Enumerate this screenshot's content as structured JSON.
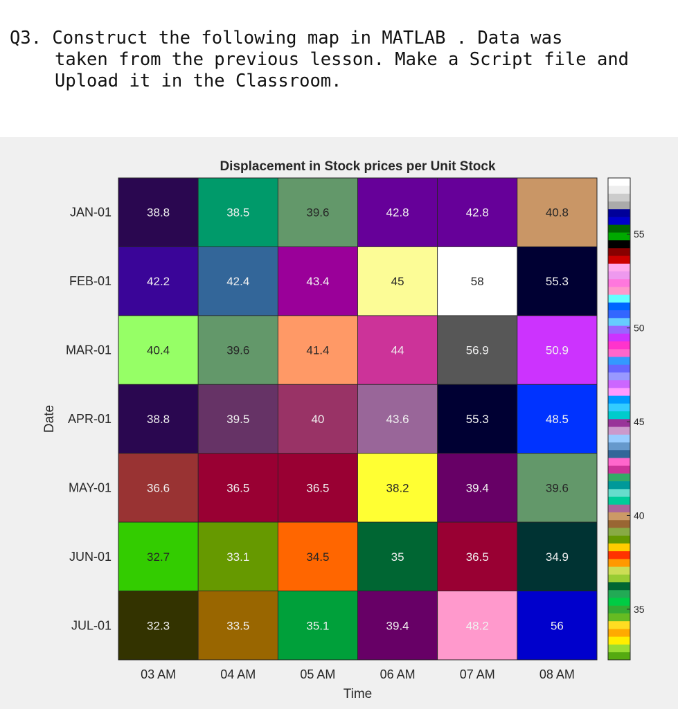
{
  "question": {
    "line1": "Q3. Construct the following map in MATLAB . Data was",
    "line2": "taken from the previous lesson. Make a Script file and",
    "line3": "Upload it in the Classroom."
  },
  "chart_data": {
    "type": "heatmap",
    "title": "Displacement in Stock prices per Unit Stock",
    "xlabel": "Time",
    "ylabel": "Date",
    "x_categories": [
      "03 AM",
      "04 AM",
      "05 AM",
      "06 AM",
      "07 AM",
      "08 AM"
    ],
    "y_categories": [
      "JAN-01",
      "FEB-01",
      "MAR-01",
      "APR-01",
      "MAY-01",
      "JUN-01",
      "JUL-01"
    ],
    "values": [
      [
        38.8,
        38.5,
        39.6,
        42.8,
        42.8,
        40.8
      ],
      [
        42.2,
        42.4,
        43.4,
        45,
        58,
        55.3
      ],
      [
        40.4,
        39.6,
        41.4,
        44,
        56.9,
        50.9
      ],
      [
        38.8,
        39.5,
        40,
        43.6,
        55.3,
        48.5
      ],
      [
        36.6,
        36.5,
        36.5,
        38.2,
        39.4,
        39.6
      ],
      [
        32.7,
        33.1,
        34.5,
        35,
        36.5,
        34.9
      ],
      [
        32.3,
        33.5,
        35.1,
        39.4,
        48.2,
        56
      ]
    ],
    "cell_colors": [
      [
        "#2a0750",
        "#009a6a",
        "#63986a",
        "#660099",
        "#660099",
        "#c99666"
      ],
      [
        "#3a0598",
        "#336699",
        "#9a0099",
        "#fcfc96",
        "#ffffff",
        "#000033"
      ],
      [
        "#96ff66",
        "#63986a",
        "#ff9966",
        "#cc3399",
        "#575757",
        "#cc33fe"
      ],
      [
        "#2a0750",
        "#663366",
        "#993366",
        "#996699",
        "#000033",
        "#0033ff"
      ],
      [
        "#993333",
        "#990033",
        "#990033",
        "#ffff33",
        "#670066",
        "#63986a"
      ],
      [
        "#33cc00",
        "#669900",
        "#ff6600",
        "#006633",
        "#990033",
        "#003333"
      ],
      [
        "#333300",
        "#996600",
        "#00a03a",
        "#670066",
        "#ff99cc",
        "#0000cc"
      ]
    ],
    "label_colors": [
      [
        "#f0f0f0",
        "#f0f0f0",
        "#262626",
        "#f0f0f0",
        "#f0f0f0",
        "#262626"
      ],
      [
        "#f0f0f0",
        "#f0f0f0",
        "#f0f0f0",
        "#262626",
        "#262626",
        "#f0f0f0"
      ],
      [
        "#262626",
        "#262626",
        "#262626",
        "#f0f0f0",
        "#f0f0f0",
        "#f0f0f0"
      ],
      [
        "#f0f0f0",
        "#f0f0f0",
        "#f0f0f0",
        "#f0f0f0",
        "#f0f0f0",
        "#f0f0f0"
      ],
      [
        "#f0f0f0",
        "#f0f0f0",
        "#f0f0f0",
        "#262626",
        "#f0f0f0",
        "#262626"
      ],
      [
        "#262626",
        "#f0f0f0",
        "#262626",
        "#f0f0f0",
        "#f0f0f0",
        "#f0f0f0"
      ],
      [
        "#f0f0f0",
        "#f0f0f0",
        "#f0f0f0",
        "#f0f0f0",
        "#f0f0f0",
        "#f0f0f0"
      ]
    ],
    "colorbar": {
      "range": [
        32.3,
        58
      ],
      "ticks": [
        35,
        40,
        45,
        50,
        55
      ],
      "colors_bottom_to_top": [
        "#55aa11",
        "#99dd33",
        "#ffee00",
        "#ffaa00",
        "#ffdd22",
        "#66bb22",
        "#33aa33",
        "#00cc44",
        "#22aa55",
        "#006633",
        "#99cc33",
        "#ccdd55",
        "#ff9900",
        "#ff3300",
        "#ffcc00",
        "#669900",
        "#88aa44",
        "#996633",
        "#cc9966",
        "#aa6699",
        "#00cc99",
        "#66ddcc",
        "#009999",
        "#33aa66",
        "#cc3399",
        "#ff66cc",
        "#336699",
        "#6699cc",
        "#99ccff",
        "#cc99cc",
        "#993399",
        "#00cccc",
        "#33ccff",
        "#0099ff",
        "#ff99ff",
        "#cc66ff",
        "#9999ff",
        "#6666ff",
        "#3399ff",
        "#ff66cc",
        "#ff33cc",
        "#cc33ff",
        "#9966ff",
        "#66ccff",
        "#3366ff",
        "#0066ff",
        "#66ffff",
        "#ff99cc",
        "#ff77dd",
        "#ee99ee",
        "#ffaaee",
        "#cc0000",
        "#880000",
        "#000000",
        "#00aa00",
        "#006600",
        "#0000cc",
        "#000099",
        "#aaaaaa",
        "#cccccc",
        "#eeeeee",
        "#ffffff"
      ]
    }
  }
}
